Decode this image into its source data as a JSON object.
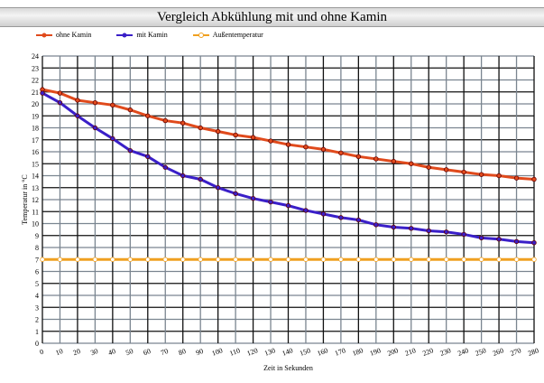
{
  "chart_data": {
    "type": "line",
    "title": "Vergleich Abkühlung mit und ohne Kamin",
    "xlabel": "Zeit in Sekunden",
    "ylabel": "Temperatur in °C",
    "x": [
      0,
      10,
      20,
      30,
      40,
      50,
      60,
      70,
      80,
      90,
      100,
      110,
      120,
      130,
      140,
      150,
      160,
      170,
      180,
      190,
      200,
      210,
      220,
      230,
      240,
      250,
      260,
      270,
      280
    ],
    "xlim": [
      0,
      280
    ],
    "ylim": [
      0,
      24
    ],
    "grid": true,
    "legend": "top-left",
    "series": [
      {
        "name": "ohne Kamin",
        "color": "#e04a1c",
        "values": [
          21.2,
          20.9,
          20.3,
          20.1,
          19.9,
          19.5,
          19.0,
          18.6,
          18.4,
          18.0,
          17.7,
          17.4,
          17.2,
          16.9,
          16.6,
          16.4,
          16.2,
          15.9,
          15.6,
          15.4,
          15.2,
          15.0,
          14.7,
          14.5,
          14.3,
          14.1,
          14.0,
          13.8,
          13.7
        ]
      },
      {
        "name": "mit Kamin",
        "color": "#3a1fc8",
        "values": [
          20.9,
          20.1,
          19.0,
          18.0,
          17.1,
          16.1,
          15.6,
          14.7,
          14.0,
          13.7,
          13.0,
          12.5,
          12.1,
          11.8,
          11.5,
          11.1,
          10.8,
          10.5,
          10.3,
          9.9,
          9.7,
          9.6,
          9.4,
          9.3,
          9.1,
          8.8,
          8.7,
          8.5,
          8.4
        ]
      },
      {
        "name": "Außentemperatur",
        "color": "#f0a020",
        "values": [
          7,
          7,
          7,
          7,
          7,
          7,
          7,
          7,
          7,
          7,
          7,
          7,
          7,
          7,
          7,
          7,
          7,
          7,
          7,
          7,
          7,
          7,
          7,
          7,
          7,
          7,
          7,
          7,
          7
        ]
      }
    ]
  }
}
